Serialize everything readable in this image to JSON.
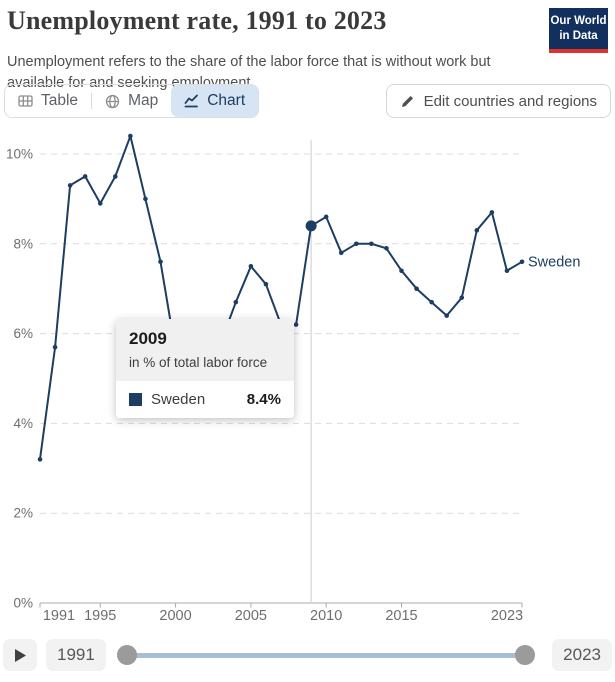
{
  "header": {
    "title": "Unemployment rate, 1991 to 2023",
    "subtitle": "Unemployment refers to the share of the labor force that is without work but available for and seeking employment.",
    "logo": {
      "line1": "Our World",
      "line2": "in Data",
      "bg_color": "#12305e",
      "stripe_color": "#e0332c"
    }
  },
  "toolbar": {
    "tabs": [
      {
        "label": "Table",
        "icon": "table-icon",
        "active": false
      },
      {
        "label": "Map",
        "icon": "globe-icon",
        "active": false
      },
      {
        "label": "Chart",
        "icon": "line-chart-icon",
        "active": true
      }
    ],
    "active_tab_bg": "#d7e4f3",
    "active_tab_color": "#1d3d63",
    "edit_button_label": "Edit countries and regions"
  },
  "tooltip": {
    "year": "2009",
    "unit": "in % of total labor force",
    "rows": [
      {
        "label": "Sweden",
        "value": "8.4%",
        "swatch_color": "#1d3d63"
      }
    ]
  },
  "timeline": {
    "play_icon": "play-icon",
    "start_label": "1991",
    "end_label": "2023"
  },
  "chart_data": {
    "type": "line",
    "title": "Unemployment rate, 1991 to 2023",
    "unit": "% of total labor force",
    "xlabel": "",
    "ylabel": "",
    "xlim": [
      1991,
      2023
    ],
    "ylim": [
      0,
      10
    ],
    "x_ticks": [
      1991,
      1995,
      2000,
      2005,
      2010,
      2015,
      2023
    ],
    "y_ticks": [
      0,
      2,
      4,
      6,
      8,
      10
    ],
    "y_tick_suffix": "%",
    "grid": "horizontal-dashed",
    "legend_position": "end-of-line-label",
    "highlight_x": 2009,
    "series": [
      {
        "name": "Sweden",
        "color": "#1d3d63",
        "x": [
          1991,
          1992,
          1993,
          1994,
          1995,
          1996,
          1997,
          1998,
          1999,
          2000,
          2001,
          2002,
          2003,
          2004,
          2005,
          2006,
          2007,
          2008,
          2009,
          2010,
          2011,
          2012,
          2013,
          2014,
          2015,
          2016,
          2017,
          2018,
          2019,
          2020,
          2021,
          2022,
          2023
        ],
        "values": [
          3.2,
          5.7,
          9.3,
          9.5,
          8.9,
          9.5,
          10.4,
          9.0,
          7.6,
          5.6,
          5.0,
          5.2,
          5.8,
          6.7,
          7.5,
          7.1,
          6.2,
          6.2,
          8.4,
          8.6,
          7.8,
          8.0,
          8.0,
          7.9,
          7.4,
          7.0,
          6.7,
          6.4,
          6.8,
          8.3,
          8.7,
          7.4,
          7.6
        ]
      }
    ]
  }
}
